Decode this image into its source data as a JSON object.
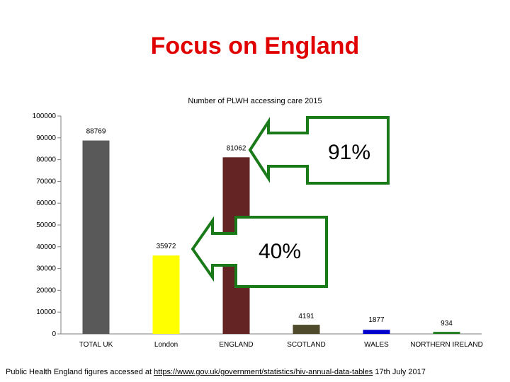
{
  "slide": {
    "title": "Focus on England",
    "source_prefix": "Public Health England figures accessed at ",
    "source_link": "https://www.gov.uk/government/statistics/hiv-annual-data-tables",
    "source_suffix": " 17th July 2017"
  },
  "callouts": [
    {
      "text": "91%",
      "points_to": "ENGLAND"
    },
    {
      "text": "40%",
      "points_to": "London"
    }
  ],
  "colors": {
    "callout_border": "#1a7a1a"
  },
  "chart_data": {
    "type": "bar",
    "title": "Number of PLWH accessing care 2015",
    "categories": [
      "TOTAL UK",
      "London",
      "ENGLAND",
      "SCOTLAND",
      "WALES",
      "NORTHERN IRELAND"
    ],
    "values": [
      88769,
      35972,
      81062,
      4191,
      1877,
      934
    ],
    "value_labels": [
      "88769",
      "35972",
      "81062",
      "4191",
      "1877",
      "934"
    ],
    "colors": [
      "#595959",
      "#ffff00",
      "#632423",
      "#4f4a2c",
      "#0000cc",
      "#1e7b1e"
    ],
    "ylim": [
      0,
      100000
    ],
    "yticks": [
      "0",
      "10000",
      "20000",
      "30000",
      "40000",
      "50000",
      "60000",
      "70000",
      "80000",
      "90000",
      "100000"
    ],
    "xlabel": "",
    "ylabel": "",
    "grid": false
  }
}
